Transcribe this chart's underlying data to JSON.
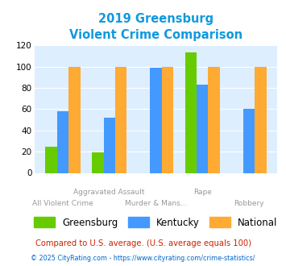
{
  "title_line1": "2019 Greensburg",
  "title_line2": "Violent Crime Comparison",
  "greensburg": [
    25,
    19,
    0,
    113,
    0
  ],
  "kentucky": [
    58,
    52,
    99,
    83,
    60
  ],
  "national": [
    100,
    100,
    100,
    100,
    100
  ],
  "greensburg_color": "#66cc00",
  "kentucky_color": "#4499ff",
  "national_color": "#ffaa33",
  "ylim": [
    0,
    120
  ],
  "yticks": [
    0,
    20,
    40,
    60,
    80,
    100,
    120
  ],
  "bg_color": "#ddeeff",
  "fig_bg": "#ffffff",
  "title_color": "#1199dd",
  "x_top_labels": [
    "",
    "Aggravated Assault",
    "",
    "Rape",
    ""
  ],
  "x_bot_labels": [
    "All Violent Crime",
    "",
    "Murder & Mans...",
    "",
    "Robbery"
  ],
  "footer1": "Compared to U.S. average. (U.S. average equals 100)",
  "footer2": "© 2025 CityRating.com - https://www.cityrating.com/crime-statistics/",
  "footer1_color": "#cc2200",
  "footer2_color": "#0066cc",
  "legend_labels": [
    "Greensburg",
    "Kentucky",
    "National"
  ],
  "xlabel_color": "#999999",
  "bar_width": 0.25
}
